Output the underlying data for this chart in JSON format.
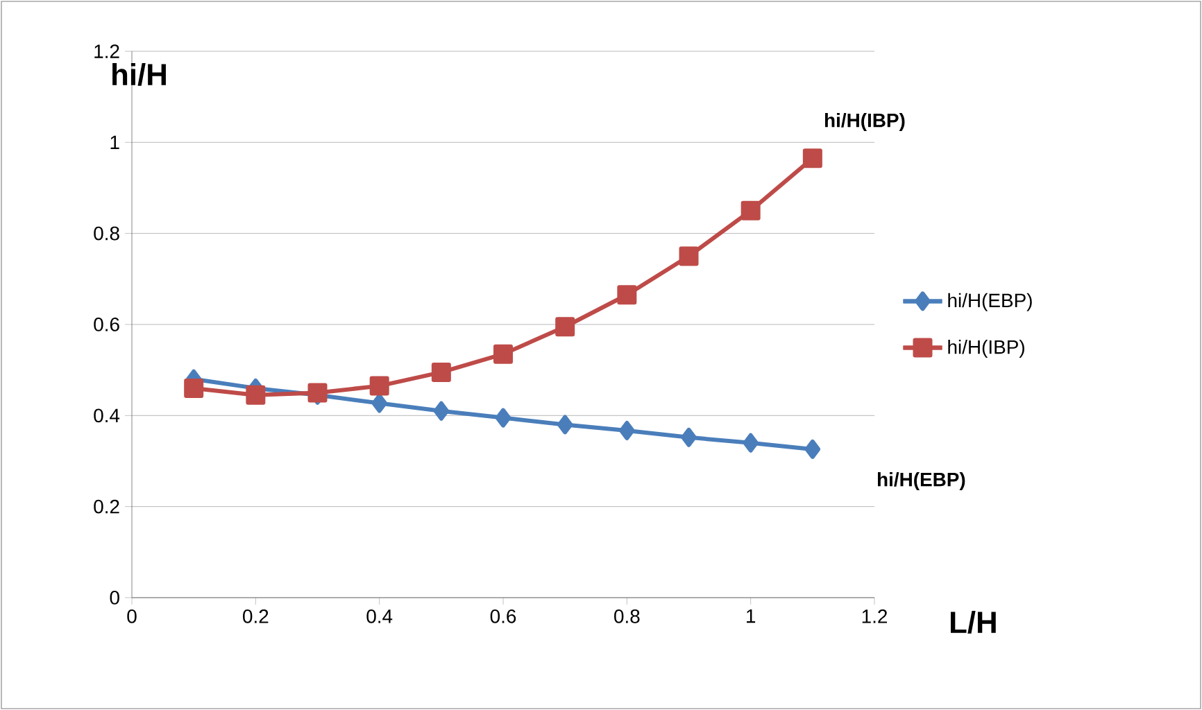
{
  "chart_data": {
    "type": "line",
    "xlabel": "L/H",
    "ylabel": "hi/H",
    "x": [
      0.1,
      0.2,
      0.3,
      0.4,
      0.5,
      0.6,
      0.7,
      0.8,
      0.9,
      1.0,
      1.1
    ],
    "series": [
      {
        "name": "hi/H(EBP)",
        "color": "#4a7ebb",
        "marker": "diamond",
        "values": [
          0.48,
          0.46,
          0.445,
          0.427,
          0.41,
          0.395,
          0.38,
          0.367,
          0.352,
          0.34,
          0.326
        ]
      },
      {
        "name": "hi/H(IBP)",
        "color": "#be4b48",
        "marker": "square",
        "values": [
          0.46,
          0.445,
          0.45,
          0.465,
          0.495,
          0.535,
          0.595,
          0.665,
          0.75,
          0.85,
          0.965
        ]
      }
    ],
    "xlim": [
      0,
      1.2
    ],
    "ylim": [
      0,
      1.2
    ],
    "xticks": [
      0,
      0.2,
      0.4,
      0.6,
      0.8,
      1,
      1.2
    ],
    "yticks": [
      0,
      0.2,
      0.4,
      0.6,
      0.8,
      1,
      1.2
    ],
    "grid": "y",
    "legend": "right",
    "annotations": [
      "hi/H(IBP)",
      "hi/H(EBP)"
    ]
  }
}
